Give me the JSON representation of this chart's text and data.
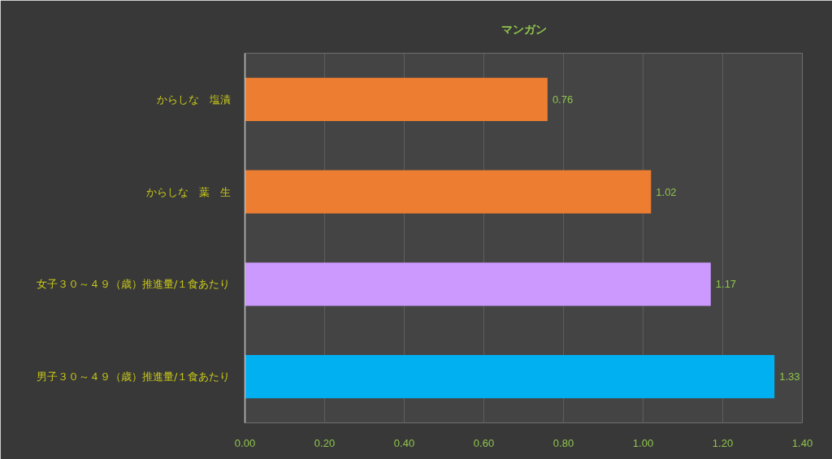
{
  "chart_data": {
    "type": "bar",
    "orientation": "horizontal",
    "title": "マンガン",
    "categories": [
      "からしな　塩漬",
      "からしな　葉　生",
      "女子３０～４９（歳）推進量/１食あたり",
      "男子３０～４９（歳）推進量/１食あたり"
    ],
    "values": [
      0.76,
      1.02,
      1.17,
      1.33
    ],
    "colors": [
      "#ed7d31",
      "#ed7d31",
      "#cc99ff",
      "#00b0f0"
    ],
    "xlim": [
      0,
      1.4
    ],
    "xticks": [
      {
        "value": 0,
        "label": "0.00"
      },
      {
        "value": 0.2,
        "label": "0.20"
      },
      {
        "value": 0.4,
        "label": "0.40"
      },
      {
        "value": 0.6,
        "label": "0.60"
      },
      {
        "value": 0.8,
        "label": "0.80"
      },
      {
        "value": 1,
        "label": "1.00"
      },
      {
        "value": 1.2,
        "label": "1.20"
      },
      {
        "value": 1.4,
        "label": "1.40"
      }
    ],
    "grid": "x",
    "data_labels": true
  }
}
